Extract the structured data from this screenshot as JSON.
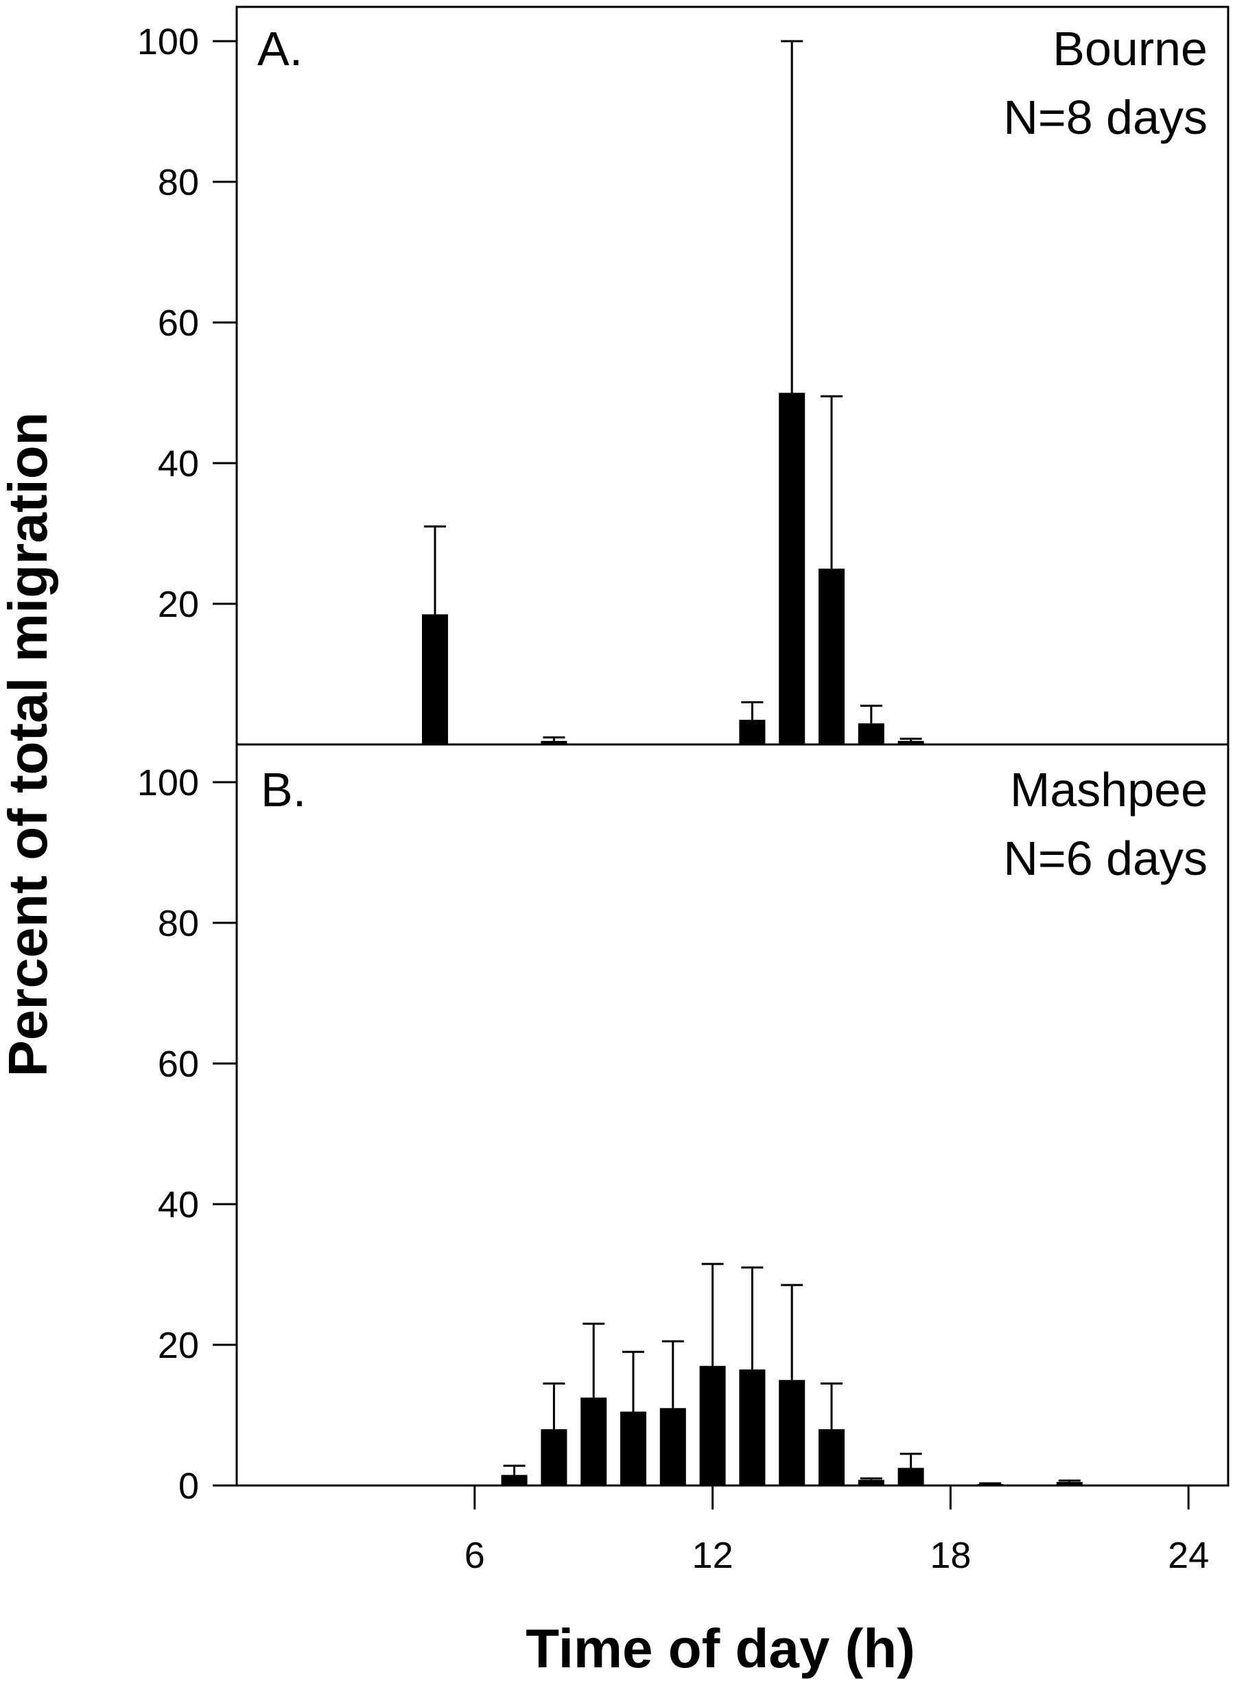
{
  "chart_data": [
    {
      "type": "bar",
      "panel_label": "A.",
      "site": "Bourne",
      "n_label": "N=8 days",
      "x_unit": "h",
      "x": [
        5,
        8,
        13,
        14,
        15,
        16,
        17
      ],
      "values": [
        18.5,
        0.5,
        3.5,
        50,
        25,
        3,
        0.5
      ],
      "error_upper": [
        31,
        1,
        6,
        100,
        49.5,
        5.5,
        0.8
      ],
      "ylim": [
        0,
        100
      ],
      "yticks": [
        "20",
        "40",
        "60",
        "80",
        "100"
      ],
      "xlim": [
        0,
        25
      ]
    },
    {
      "type": "bar",
      "panel_label": "B.",
      "site": "Mashpee",
      "n_label": "N=6 days",
      "x_unit": "h",
      "x": [
        7,
        8,
        9,
        10,
        11,
        12,
        13,
        14,
        15,
        16,
        17,
        19,
        21
      ],
      "values": [
        1.5,
        8,
        12.5,
        10.5,
        11,
        17,
        16.5,
        15,
        8,
        0.8,
        2.5,
        0.2,
        0.5
      ],
      "error_upper": [
        2.8,
        14.5,
        23,
        19,
        20.5,
        31.5,
        31,
        28.5,
        14.5,
        1,
        4.5,
        0.3,
        0.7
      ],
      "ylim": [
        0,
        100
      ],
      "yticks": [
        "0",
        "20",
        "40",
        "60",
        "80",
        "100"
      ],
      "xlim": [
        0,
        25
      ]
    }
  ],
  "x_ticks": [
    "6",
    "12",
    "18",
    "24"
  ],
  "xlabel": "Time of day (h)",
  "ylabel": "Percent of total migration"
}
